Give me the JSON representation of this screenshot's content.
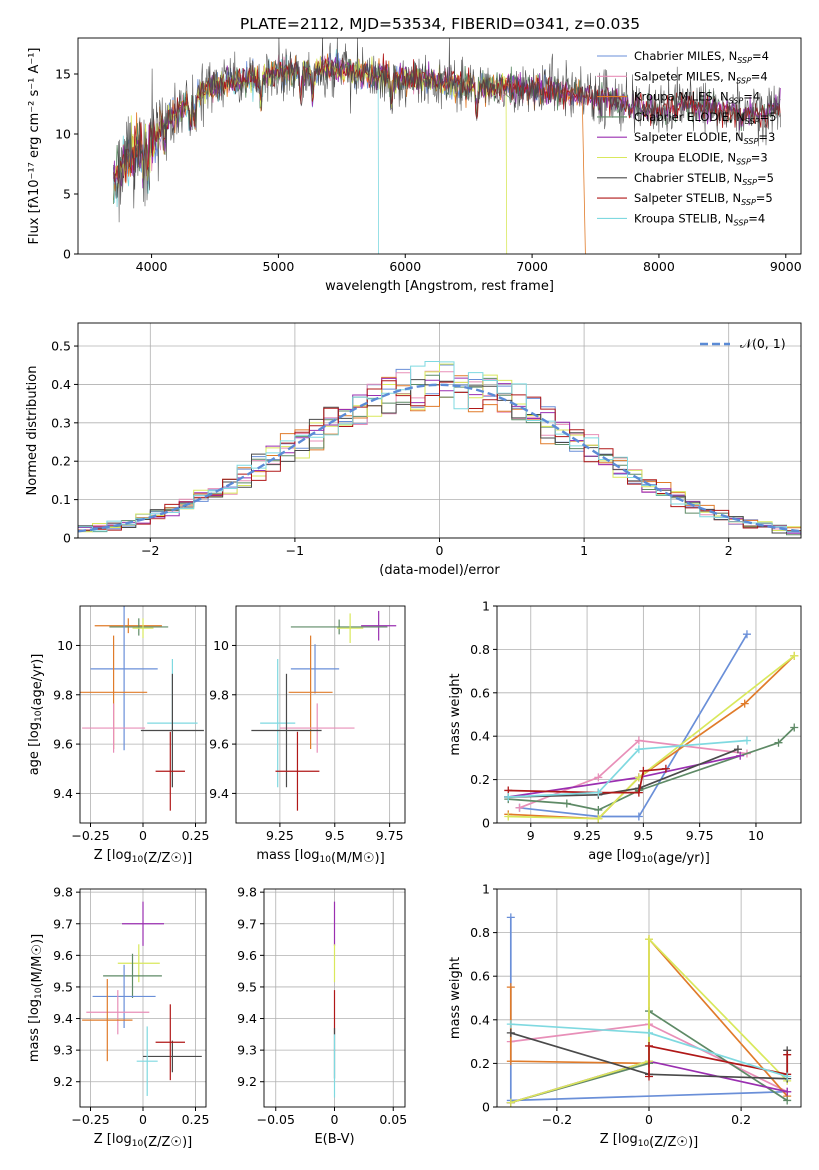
{
  "title": "PLATE=2112, MJD=53534, FIBERID=0341, z=0.035",
  "colors": {
    "chabrier_miles": "#6a8fd8",
    "salpeter_miles": "#e88fb8",
    "kroupa_miles": "#e07b2a",
    "chabrier_elodie": "#5e8a66",
    "salpeter_elodie": "#9a2fb0",
    "kroupa_elodie": "#d9e85c",
    "chabrier_stelib": "#4a4a4a",
    "salpeter_stelib": "#b01818",
    "kroupa_stelib": "#7fd9e0",
    "gaussian": "#5b8bd6"
  },
  "legend": [
    {
      "label": "Chabrier MILES, N",
      "sub": "SSP",
      "suffix": "=4",
      "color": "#6a8fd8"
    },
    {
      "label": "Salpeter MILES, N",
      "sub": "SSP",
      "suffix": "=4",
      "color": "#e88fb8"
    },
    {
      "label": "Kroupa MILES, N",
      "sub": "SSP",
      "suffix": "=4",
      "color": "#e07b2a"
    },
    {
      "label": "Chabrier ELODIE, N",
      "sub": "SSP",
      "suffix": "=5",
      "color": "#5e8a66"
    },
    {
      "label": "Salpeter ELODIE, N",
      "sub": "SSP",
      "suffix": "=3",
      "color": "#9a2fb0"
    },
    {
      "label": "Kroupa ELODIE, N",
      "sub": "SSP",
      "suffix": "=3",
      "color": "#d9e85c"
    },
    {
      "label": "Chabrier STELIB, N",
      "sub": "SSP",
      "suffix": "=5",
      "color": "#4a4a4a"
    },
    {
      "label": "Salpeter STELIB, N",
      "sub": "SSP",
      "suffix": "=5",
      "color": "#b01818"
    },
    {
      "label": "Kroupa STELIB, N",
      "sub": "SSP",
      "suffix": "=4",
      "color": "#7fd9e0"
    }
  ],
  "chart_data": [
    {
      "type": "line",
      "id": "spectrum",
      "xlabel": "wavelength [Angstrom, rest frame]",
      "ylabel": "Flux [fλ10⁻¹⁷ erg cm⁻² s⁻¹ A⁻¹]",
      "xlim": [
        3420,
        9120
      ],
      "ylim": [
        0,
        18
      ],
      "xticks": [
        4000,
        5000,
        6000,
        7000,
        8000,
        9000
      ],
      "yticks": [
        0,
        5,
        10,
        15
      ],
      "continuum_x": [
        3700,
        3750,
        3800,
        3850,
        3900,
        3950,
        4000,
        4100,
        4200,
        4300,
        4400,
        4500,
        4600,
        4800,
        5000,
        5200,
        5400,
        5600,
        5800,
        6000,
        6200,
        6400,
        6600,
        6800,
        7000,
        7200,
        7400,
        7600,
        7800,
        8000,
        8200,
        8400,
        8600,
        8800,
        8950
      ],
      "continuum_y": [
        6.3,
        7.0,
        7.8,
        8.4,
        9.0,
        9.2,
        9.0,
        11.4,
        11.7,
        12.9,
        13.5,
        14.0,
        14.3,
        14.6,
        15.2,
        15.3,
        15.5,
        15.2,
        14.8,
        14.6,
        14.4,
        14.1,
        13.9,
        13.9,
        13.7,
        13.5,
        13.3,
        13.0,
        12.3,
        12.0,
        12.4,
        12.2,
        11.6,
        11.5,
        12.3
      ],
      "dropouts": [
        {
          "x": 5790,
          "series": "Kroupa STELIB"
        },
        {
          "x": 6800,
          "series": "Kroupa ELODIE"
        },
        {
          "x": 7420,
          "series": "Kroupa MILES"
        }
      ],
      "legend_position": "upper right"
    },
    {
      "type": "histogram",
      "id": "residuals",
      "xlabel": "(data-model)/error",
      "ylabel": "Normed distribution",
      "xlim": [
        -2.5,
        2.5
      ],
      "ylim": [
        0,
        0.56
      ],
      "xticks": [
        -2,
        -1,
        0,
        1,
        2
      ],
      "yticks": [
        0,
        0.1,
        0.2,
        0.3,
        0.4,
        0.5
      ],
      "bin_width": 0.1,
      "gaussian_label": "𝒩(0, 1)",
      "legend_position": "upper right",
      "grid": true
    },
    {
      "type": "errorbar",
      "id": "age_vs_Z",
      "xlabel": "Z [log10(Z/Z☉)]",
      "ylabel": "age  [log10(age/yr)]",
      "xlim": [
        -0.3,
        0.3
      ],
      "ylim": [
        9.28,
        10.16
      ],
      "xticks": [
        -0.25,
        0.0,
        0.25
      ],
      "yticks": [
        9.4,
        9.6,
        9.8,
        10.0
      ],
      "points": [
        {
          "x": -0.07,
          "y": 10.08,
          "xerr": 0.16,
          "yerr": 0.03,
          "color": "#e07b2a"
        },
        {
          "x": -0.02,
          "y": 10.075,
          "xerr": 0.14,
          "yerr": 0.035,
          "color": "#5e8a66"
        },
        {
          "x": 0.0,
          "y": 10.07,
          "xerr": 0.05,
          "yerr": 0.04,
          "color": "#d9e85c"
        },
        {
          "x": -0.09,
          "y": 9.905,
          "xerr": 0.16,
          "yerr": 0.33,
          "color": "#6a8fd8"
        },
        {
          "x": -0.14,
          "y": 9.81,
          "xerr": 0.16,
          "yerr": 0.23,
          "color": "#e07b2a"
        },
        {
          "x": -0.14,
          "y": 9.665,
          "xerr": 0.15,
          "yerr": 0.1,
          "color": "#e88fb8"
        },
        {
          "x": 0.14,
          "y": 9.685,
          "xerr": 0.12,
          "yerr": 0.26,
          "color": "#7fd9e0"
        },
        {
          "x": 0.14,
          "y": 9.655,
          "xerr": 0.15,
          "yerr": 0.23,
          "color": "#4a4a4a"
        },
        {
          "x": 0.13,
          "y": 9.49,
          "xerr": 0.07,
          "yerr": 0.16,
          "color": "#b01818"
        }
      ],
      "grid": true
    },
    {
      "type": "errorbar",
      "id": "age_vs_mass",
      "xlabel": "mass [log10(M/M☉)]",
      "xlim": [
        9.05,
        9.82
      ],
      "ylim": [
        9.28,
        10.16
      ],
      "xticks": [
        9.25,
        9.5,
        9.75
      ],
      "yticks": [
        9.4,
        9.6,
        9.8,
        10.0
      ],
      "points": [
        {
          "x": 9.7,
          "y": 10.08,
          "xerr": 0.08,
          "yerr": 0.06,
          "color": "#9a2fb0"
        },
        {
          "x": 9.52,
          "y": 10.075,
          "xerr": 0.22,
          "yerr": 0.03,
          "color": "#5e8a66"
        },
        {
          "x": 9.57,
          "y": 10.07,
          "xerr": 0.06,
          "yerr": 0.06,
          "color": "#d9e85c"
        },
        {
          "x": 9.41,
          "y": 9.905,
          "xerr": 0.11,
          "yerr": 0.1,
          "color": "#6a8fd8"
        },
        {
          "x": 9.39,
          "y": 9.81,
          "xerr": 0.1,
          "yerr": 0.23,
          "color": "#e07b2a"
        },
        {
          "x": 9.42,
          "y": 9.665,
          "xerr": 0.17,
          "yerr": 0.1,
          "color": "#e88fb8"
        },
        {
          "x": 9.24,
          "y": 9.685,
          "xerr": 0.08,
          "yerr": 0.26,
          "color": "#7fd9e0"
        },
        {
          "x": 9.28,
          "y": 9.655,
          "xerr": 0.16,
          "yerr": 0.23,
          "color": "#4a4a4a"
        },
        {
          "x": 9.33,
          "y": 9.49,
          "xerr": 0.1,
          "yerr": 0.16,
          "color": "#b01818"
        }
      ],
      "grid": true
    },
    {
      "type": "line",
      "id": "weight_vs_age",
      "xlabel": "age  [log10(age/yr)]",
      "ylabel": "mass weight",
      "xlim": [
        8.85,
        10.2
      ],
      "ylim": [
        0,
        1.0
      ],
      "xticks": [
        9.0,
        9.25,
        9.5,
        9.75,
        10.0
      ],
      "yticks": [
        0,
        0.2,
        0.4,
        0.6,
        0.8,
        1.0
      ],
      "series": [
        {
          "name": "Chabrier MILES",
          "color": "#6a8fd8",
          "x": [
            8.95,
            9.3,
            9.48,
            9.96
          ],
          "y": [
            0.07,
            0.03,
            0.03,
            0.87
          ]
        },
        {
          "name": "Salpeter MILES",
          "color": "#e88fb8",
          "x": [
            8.95,
            9.3,
            9.48,
            9.96
          ],
          "y": [
            0.07,
            0.21,
            0.38,
            0.32
          ]
        },
        {
          "name": "Kroupa MILES",
          "color": "#e07b2a",
          "x": [
            8.9,
            9.3,
            9.48,
            9.95,
            10.17
          ],
          "y": [
            0.04,
            0.02,
            0.21,
            0.55,
            0.77
          ]
        },
        {
          "name": "Chabrier ELODIE",
          "color": "#5e8a66",
          "x": [
            8.9,
            9.16,
            9.3,
            9.48,
            10.1,
            10.17
          ],
          "y": [
            0.11,
            0.09,
            0.06,
            0.15,
            0.37,
            0.44
          ]
        },
        {
          "name": "Salpeter ELODIE",
          "color": "#9a2fb0",
          "x": [
            8.9,
            9.48,
            9.93
          ],
          "y": [
            0.12,
            0.21,
            0.31
          ]
        },
        {
          "name": "Kroupa ELODIE",
          "color": "#d9e85c",
          "x": [
            8.9,
            9.3,
            9.48,
            10.17
          ],
          "y": [
            0.03,
            0.02,
            0.21,
            0.77
          ]
        },
        {
          "name": "Chabrier STELIB",
          "color": "#4a4a4a",
          "x": [
            8.9,
            9.3,
            9.48,
            9.92
          ],
          "y": [
            0.12,
            0.13,
            0.16,
            0.34
          ]
        },
        {
          "name": "Salpeter STELIB",
          "color": "#b01818",
          "x": [
            8.9,
            9.3,
            9.48,
            9.5,
            9.6
          ],
          "y": [
            0.15,
            0.14,
            0.14,
            0.24,
            0.25
          ]
        },
        {
          "name": "Kroupa STELIB",
          "color": "#7fd9e0",
          "x": [
            8.9,
            9.3,
            9.48,
            9.96
          ],
          "y": [
            0.12,
            0.14,
            0.34,
            0.38
          ]
        }
      ],
      "grid": true
    },
    {
      "type": "errorbar",
      "id": "mass_vs_Z",
      "xlabel": "Z [log10(Z/Z☉)]",
      "ylabel": "mass [log10(M/M☉)]",
      "xlim": [
        -0.3,
        0.3
      ],
      "ylim": [
        9.12,
        9.81
      ],
      "xticks": [
        -0.25,
        0.0,
        0.25
      ],
      "yticks": [
        9.2,
        9.3,
        9.4,
        9.5,
        9.6,
        9.7,
        9.8
      ],
      "points": [
        {
          "x": 0.0,
          "y": 9.7,
          "xerr": 0.1,
          "yerr": 0.07,
          "color": "#9a2fb0"
        },
        {
          "x": -0.02,
          "y": 9.575,
          "xerr": 0.1,
          "yerr": 0.06,
          "color": "#d9e85c"
        },
        {
          "x": -0.05,
          "y": 9.535,
          "xerr": 0.14,
          "yerr": 0.07,
          "color": "#5e8a66"
        },
        {
          "x": -0.09,
          "y": 9.47,
          "xerr": 0.15,
          "yerr": 0.1,
          "color": "#6a8fd8"
        },
        {
          "x": -0.12,
          "y": 9.42,
          "xerr": 0.15,
          "yerr": 0.07,
          "color": "#e88fb8"
        },
        {
          "x": -0.17,
          "y": 9.395,
          "xerr": 0.12,
          "yerr": 0.13,
          "color": "#e07b2a"
        },
        {
          "x": 0.14,
          "y": 9.28,
          "xerr": 0.14,
          "yerr": 0.05,
          "color": "#4a4a4a"
        },
        {
          "x": 0.13,
          "y": 9.325,
          "xerr": 0.07,
          "yerr": 0.12,
          "color": "#b01818"
        },
        {
          "x": 0.02,
          "y": 9.265,
          "xerr": 0.05,
          "yerr": 0.11,
          "color": "#7fd9e0"
        }
      ],
      "grid": true
    },
    {
      "type": "errorbar",
      "id": "mass_vs_ebv",
      "xlabel": "E(B-V)",
      "xlim": [
        -0.06,
        0.06
      ],
      "ylim": [
        9.12,
        9.81
      ],
      "xticks": [
        -0.05,
        0.0,
        0.05
      ],
      "yticks": [
        9.2,
        9.3,
        9.4,
        9.5,
        9.6,
        9.7,
        9.8
      ],
      "points": [
        {
          "x": 0.0,
          "y": 9.7,
          "xerr": 0,
          "yerr": 0.07,
          "color": "#9a2fb0"
        },
        {
          "x": 0.0,
          "y": 9.575,
          "xerr": 0,
          "yerr": 0.06,
          "color": "#d9e85c"
        },
        {
          "x": 0.0,
          "y": 9.42,
          "xerr": 0,
          "yerr": 0.07,
          "color": "#b01818"
        },
        {
          "x": 0.0,
          "y": 9.29,
          "xerr": 0,
          "yerr": 0.08,
          "color": "#4a4a4a"
        },
        {
          "x": 0.0,
          "y": 9.25,
          "xerr": 0,
          "yerr": 0.1,
          "color": "#7fd9e0"
        }
      ],
      "grid": true
    },
    {
      "type": "line",
      "id": "weight_vs_Z",
      "xlabel": "Z [log10(Z/Z☉)]",
      "ylabel": "mass weight",
      "xlim": [
        -0.33,
        0.33
      ],
      "ylim": [
        0,
        1.0
      ],
      "xticks": [
        -0.2,
        0.0,
        0.2
      ],
      "yticks": [
        0,
        0.2,
        0.4,
        0.6,
        0.8,
        1.0
      ],
      "series": [
        {
          "name": "Chabrier MILES",
          "color": "#6a8fd8",
          "x": [
            -0.3,
            -0.3,
            0.3
          ],
          "y": [
            0.87,
            0.03,
            0.07
          ]
        },
        {
          "name": "Salpeter MILES",
          "color": "#e88fb8",
          "x": [
            -0.3,
            0.0,
            0.3
          ],
          "y": [
            0.3,
            0.38,
            0.07
          ]
        },
        {
          "name": "Kroupa MILES",
          "color": "#e07b2a",
          "x": [
            -0.3,
            -0.3,
            0.0,
            0.0,
            0.3
          ],
          "y": [
            0.55,
            0.21,
            0.2,
            0.77,
            0.05
          ]
        },
        {
          "name": "Chabrier ELODIE",
          "color": "#5e8a66",
          "x": [
            -0.3,
            0.0,
            0.0,
            0.3
          ],
          "y": [
            0.02,
            0.2,
            0.44,
            0.03
          ]
        },
        {
          "name": "Salpeter ELODIE",
          "color": "#9a2fb0",
          "x": [
            -0.3,
            0.0,
            0.3
          ],
          "y": [
            0.02,
            0.21,
            0.07
          ]
        },
        {
          "name": "Kroupa ELODIE",
          "color": "#d9e85c",
          "x": [
            -0.3,
            0.0,
            0.0,
            0.3
          ],
          "y": [
            0.02,
            0.21,
            0.77,
            0.12
          ]
        },
        {
          "name": "Chabrier STELIB",
          "color": "#4a4a4a",
          "x": [
            -0.3,
            0.0,
            0.3,
            0.3
          ],
          "y": [
            0.34,
            0.15,
            0.13,
            0.26
          ]
        },
        {
          "name": "Salpeter STELIB",
          "color": "#b01818",
          "x": [
            0.0,
            0.0,
            0.3,
            0.3
          ],
          "y": [
            0.14,
            0.28,
            0.15,
            0.24
          ]
        },
        {
          "name": "Kroupa STELIB",
          "color": "#7fd9e0",
          "x": [
            -0.3,
            0.0,
            0.3
          ],
          "y": [
            0.38,
            0.34,
            0.14
          ]
        }
      ],
      "grid": true
    }
  ]
}
